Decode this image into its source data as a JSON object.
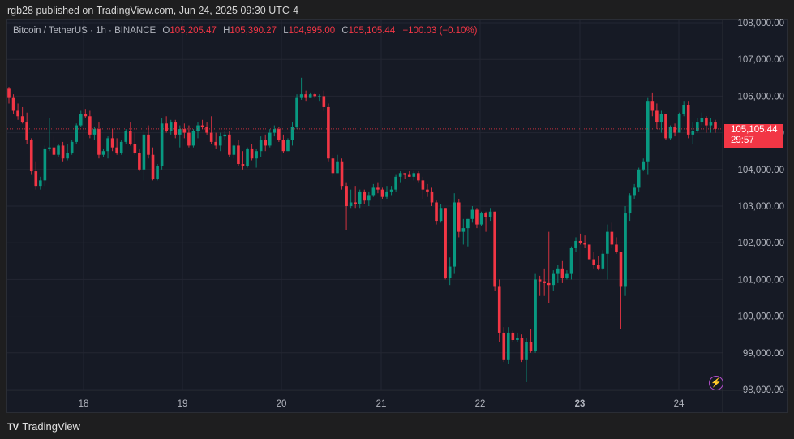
{
  "header": {
    "published": "rgb28 published on TradingView.com, Jun 24, 2025 09:30 UTC-4"
  },
  "legend": {
    "symbol": "Bitcoin / TetherUS · 1h · BINANCE",
    "o_label": "O",
    "o": "105,205.47",
    "h_label": "H",
    "h": "105,390.27",
    "l_label": "L",
    "l": "104,995.00",
    "c_label": "C",
    "c": "105,105.44",
    "change": "−100.03 (−0.10%)"
  },
  "price_tag": {
    "price": "105,105.44",
    "countdown": "29:57"
  },
  "footer": {
    "brand": "TradingView",
    "logo_glyph": "TV"
  },
  "icons": {
    "bolt": "⚡"
  },
  "colors": {
    "up": "#089981",
    "down": "#f23645",
    "bg": "#161a25",
    "grid": "#232632",
    "last_price": "#f23645",
    "bolt": "#b04dc9"
  },
  "chart_data": {
    "type": "candlestick",
    "title": "Bitcoin / TetherUS · 1h · BINANCE",
    "xlabel": "",
    "ylabel": "",
    "x_ticks": [
      "18",
      "19",
      "20",
      "21",
      "22",
      "23",
      "24"
    ],
    "y_ticks": [
      "108,000.00",
      "107,000.00",
      "106,000.00",
      "105,000.00",
      "104,000.00",
      "103,000.00",
      "102,000.00",
      "101,000.00",
      "100,000.00",
      "99,000.00",
      "98,000.00"
    ],
    "y_tick_values": [
      108000,
      107000,
      106000,
      105000,
      104000,
      103000,
      102000,
      101000,
      100000,
      99000,
      98000
    ],
    "ylim": [
      97700,
      108400
    ],
    "grid": true,
    "last_price": 105105.44,
    "candles_note": "approximate hourly OHLC read from pixels, from ~Jun 17 07:00 to Jun 24 09:00",
    "candles": [
      [
        106200,
        106250,
        105800,
        105950
      ],
      [
        105950,
        106050,
        105500,
        105600
      ],
      [
        105600,
        105800,
        105350,
        105450
      ],
      [
        105450,
        105700,
        105250,
        105300
      ],
      [
        105300,
        105550,
        104700,
        104800
      ],
      [
        104800,
        104850,
        103850,
        103950
      ],
      [
        103950,
        104200,
        103450,
        103550
      ],
      [
        103550,
        103800,
        103450,
        103700
      ],
      [
        103700,
        104650,
        103550,
        104550
      ],
      [
        104550,
        105400,
        104500,
        104600
      ],
      [
        104600,
        104900,
        104350,
        104400
      ],
      [
        104400,
        104700,
        104350,
        104650
      ],
      [
        104650,
        104750,
        104200,
        104300
      ],
      [
        104300,
        104700,
        104250,
        104450
      ],
      [
        104450,
        104800,
        104400,
        104750
      ],
      [
        104750,
        105250,
        104700,
        105200
      ],
      [
        105200,
        105600,
        105150,
        105500
      ],
      [
        105500,
        105650,
        105400,
        105450
      ],
      [
        105450,
        105600,
        104850,
        104950
      ],
      [
        104950,
        105150,
        104800,
        105100
      ],
      [
        105100,
        105300,
        104300,
        104400
      ],
      [
        104400,
        104550,
        104350,
        104500
      ],
      [
        104500,
        104900,
        104300,
        104850
      ],
      [
        104850,
        105100,
        104500,
        104600
      ],
      [
        104600,
        104850,
        104400,
        104450
      ],
      [
        104450,
        104800,
        104400,
        104750
      ],
      [
        104750,
        105100,
        104700,
        105050
      ],
      [
        105050,
        105300,
        104650,
        104700
      ],
      [
        104700,
        105000,
        104400,
        104450
      ],
      [
        104450,
        104550,
        103950,
        104000
      ],
      [
        104000,
        105050,
        103700,
        104950
      ],
      [
        104950,
        105200,
        104300,
        104400
      ],
      [
        104400,
        104600,
        103700,
        103750
      ],
      [
        103750,
        104150,
        103700,
        104100
      ],
      [
        104100,
        105400,
        104000,
        105250
      ],
      [
        105250,
        105450,
        105000,
        105050
      ],
      [
        105050,
        105350,
        104950,
        105300
      ],
      [
        105300,
        105350,
        104850,
        104950
      ],
      [
        104950,
        105200,
        104600,
        105100
      ],
      [
        105100,
        105250,
        104850,
        105000
      ],
      [
        105000,
        105200,
        104600,
        104650
      ],
      [
        104650,
        105100,
        104600,
        105050
      ],
      [
        105050,
        105300,
        104850,
        105200
      ],
      [
        105200,
        105350,
        105100,
        105150
      ],
      [
        105150,
        105300,
        104950,
        105000
      ],
      [
        105000,
        105450,
        104700,
        104750
      ],
      [
        104750,
        105000,
        104550,
        104650
      ],
      [
        104650,
        105000,
        104500,
        104900
      ],
      [
        104900,
        105050,
        104800,
        104950
      ],
      [
        104950,
        105050,
        104350,
        104400
      ],
      [
        104400,
        104700,
        104300,
        104650
      ],
      [
        104650,
        104800,
        104100,
        104150
      ],
      [
        104150,
        104500,
        104000,
        104100
      ],
      [
        104100,
        104600,
        104050,
        104550
      ],
      [
        104550,
        104700,
        104250,
        104300
      ],
      [
        104300,
        104550,
        104050,
        104500
      ],
      [
        104500,
        104900,
        104350,
        104800
      ],
      [
        104800,
        104950,
        104500,
        104650
      ],
      [
        104650,
        105100,
        104600,
        105000
      ],
      [
        105000,
        105200,
        104900,
        105100
      ],
      [
        105100,
        105150,
        104750,
        104800
      ],
      [
        104800,
        104950,
        104450,
        104500
      ],
      [
        104500,
        104850,
        104500,
        104800
      ],
      [
        104800,
        105300,
        104650,
        105150
      ],
      [
        105150,
        106050,
        105100,
        105950
      ],
      [
        105950,
        106500,
        105900,
        106050
      ],
      [
        106050,
        106150,
        105850,
        105950
      ],
      [
        105950,
        106100,
        105950,
        106050
      ],
      [
        106050,
        106100,
        105950,
        106000
      ],
      [
        106000,
        106050,
        105850,
        106000
      ],
      [
        106000,
        106150,
        105600,
        105700
      ],
      [
        105700,
        105800,
        104200,
        104300
      ],
      [
        104300,
        104400,
        103800,
        103900
      ],
      [
        103900,
        104400,
        103900,
        104200
      ],
      [
        104200,
        104300,
        103450,
        103550
      ],
      [
        103550,
        103650,
        102350,
        103000
      ],
      [
        103000,
        103450,
        102950,
        103100
      ],
      [
        103100,
        103550,
        102950,
        103050
      ],
      [
        103050,
        103450,
        102950,
        103400
      ],
      [
        103400,
        103450,
        103050,
        103150
      ],
      [
        103150,
        103400,
        103000,
        103300
      ],
      [
        103300,
        103600,
        103250,
        103500
      ],
      [
        103500,
        103650,
        103350,
        103450
      ],
      [
        103450,
        103500,
        103200,
        103250
      ],
      [
        103250,
        103550,
        103200,
        103400
      ],
      [
        103400,
        103550,
        103300,
        103450
      ],
      [
        103450,
        103850,
        103400,
        103800
      ],
      [
        103800,
        103950,
        103650,
        103900
      ],
      [
        103900,
        103900,
        103750,
        103850
      ],
      [
        103850,
        103950,
        103800,
        103800
      ],
      [
        103800,
        103950,
        103700,
        103900
      ],
      [
        103900,
        103950,
        103650,
        103700
      ],
      [
        103700,
        103800,
        103200,
        103450
      ],
      [
        103450,
        103600,
        103250,
        103400
      ],
      [
        103400,
        103500,
        103000,
        103100
      ],
      [
        103100,
        103150,
        102500,
        102600
      ],
      [
        102600,
        103050,
        102550,
        102950
      ],
      [
        102950,
        102950,
        101000,
        101050
      ],
      [
        101050,
        101600,
        100850,
        101350
      ],
      [
        101350,
        103350,
        101150,
        103100
      ],
      [
        103100,
        103200,
        102150,
        102300
      ],
      [
        102300,
        102650,
        101950,
        102400
      ],
      [
        102400,
        102650,
        101900,
        102650
      ],
      [
        102650,
        103000,
        102550,
        102900
      ],
      [
        102900,
        102950,
        102400,
        102500
      ],
      [
        102500,
        102850,
        102450,
        102800
      ],
      [
        102800,
        102850,
        102300,
        102700
      ],
      [
        102700,
        102950,
        102600,
        102850
      ],
      [
        102850,
        102850,
        100700,
        100800
      ],
      [
        100800,
        101000,
        99300,
        99550
      ],
      [
        99550,
        99700,
        98750,
        98800
      ],
      [
        98800,
        99700,
        98700,
        99550
      ],
      [
        99550,
        99600,
        99300,
        99350
      ],
      [
        99350,
        99550,
        99300,
        99400
      ],
      [
        99400,
        99500,
        98750,
        98800
      ],
      [
        98800,
        99400,
        98200,
        99300
      ],
      [
        99300,
        99650,
        99000,
        99050
      ],
      [
        99050,
        101150,
        99000,
        101000
      ],
      [
        101000,
        101100,
        100550,
        100950
      ],
      [
        100950,
        101300,
        100550,
        100900
      ],
      [
        100900,
        102300,
        100350,
        100850
      ],
      [
        100850,
        101250,
        100700,
        101150
      ],
      [
        101150,
        101400,
        100900,
        101300
      ],
      [
        101300,
        101500,
        100900,
        101050
      ],
      [
        101050,
        101250,
        101000,
        101150
      ],
      [
        101150,
        101900,
        101000,
        101850
      ],
      [
        101850,
        102150,
        101750,
        102050
      ],
      [
        102050,
        102250,
        101950,
        102000
      ],
      [
        102000,
        102200,
        101850,
        101950
      ],
      [
        101950,
        101900,
        101550,
        101550
      ],
      [
        101550,
        101750,
        101300,
        101400
      ],
      [
        101400,
        101650,
        101250,
        101300
      ],
      [
        101300,
        101800,
        101250,
        101700
      ],
      [
        101700,
        102500,
        101000,
        102300
      ],
      [
        102300,
        102550,
        101850,
        101950
      ],
      [
        101950,
        102150,
        101700,
        101750
      ],
      [
        101750,
        101750,
        99650,
        100800
      ],
      [
        100800,
        103000,
        100550,
        102800
      ],
      [
        102800,
        103350,
        102600,
        103300
      ],
      [
        103300,
        103600,
        103200,
        103500
      ],
      [
        103500,
        104050,
        103400,
        104000
      ],
      [
        104000,
        104300,
        103950,
        104200
      ],
      [
        104200,
        105950,
        103850,
        105850
      ],
      [
        105850,
        106100,
        105450,
        105600
      ],
      [
        105600,
        105800,
        105100,
        105300
      ],
      [
        105300,
        105600,
        105000,
        105500
      ],
      [
        105500,
        105500,
        104800,
        104850
      ],
      [
        104850,
        105200,
        104800,
        105150
      ],
      [
        105150,
        105250,
        104900,
        105000
      ],
      [
        105000,
        105550,
        105000,
        105500
      ],
      [
        105500,
        105850,
        105450,
        105750
      ],
      [
        105750,
        105850,
        104850,
        104950
      ],
      [
        104950,
        105300,
        104700,
        105050
      ],
      [
        105050,
        105400,
        105000,
        105300
      ],
      [
        105300,
        105550,
        105200,
        105400
      ],
      [
        105400,
        105450,
        105000,
        105200
      ],
      [
        105200,
        105400,
        105000,
        105300
      ],
      [
        105300,
        105350,
        105000,
        105105
      ]
    ]
  }
}
